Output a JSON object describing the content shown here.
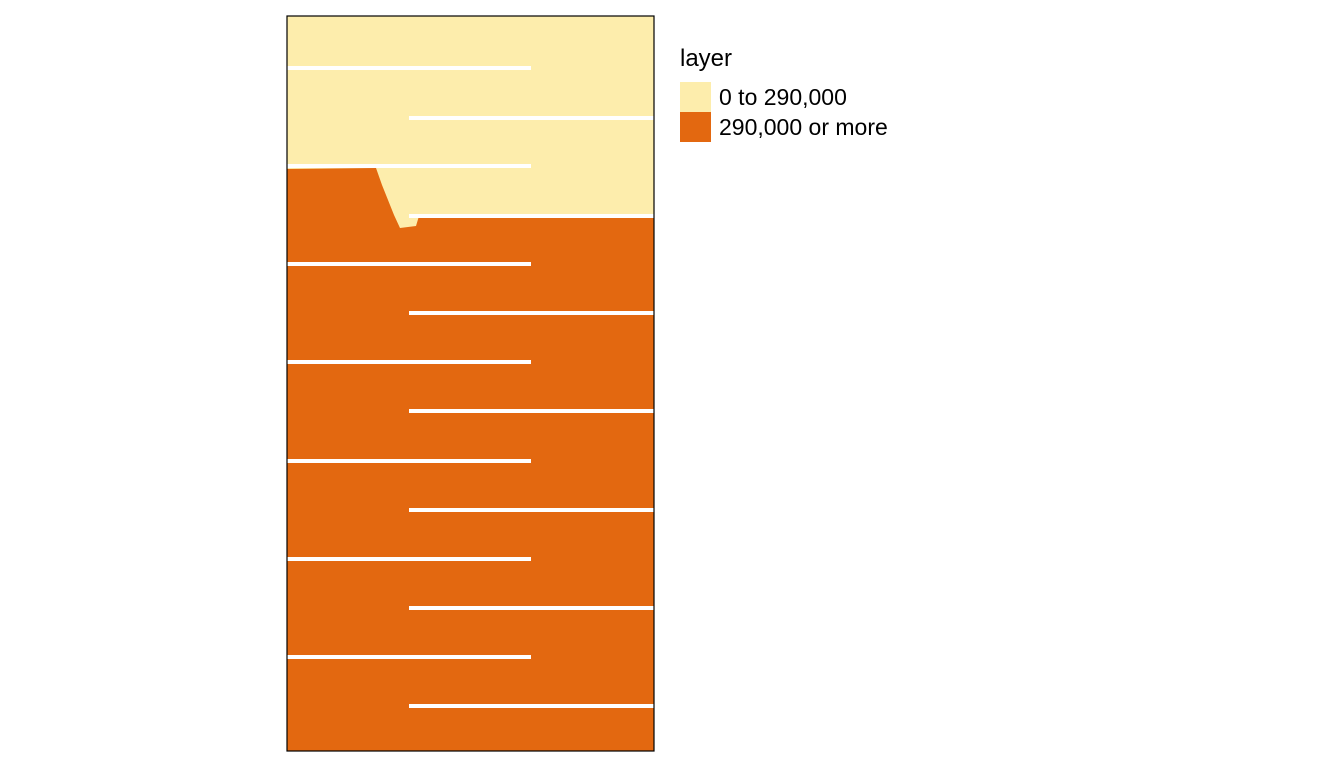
{
  "legend": {
    "title": "layer",
    "items": [
      {
        "label": "0 to 290,000",
        "color": "#FDEDAC"
      },
      {
        "label": "290,000 or more",
        "color": "#E36810"
      }
    ]
  },
  "map": {
    "line_color": "#FFFFFF",
    "border_color": "#000000"
  }
}
